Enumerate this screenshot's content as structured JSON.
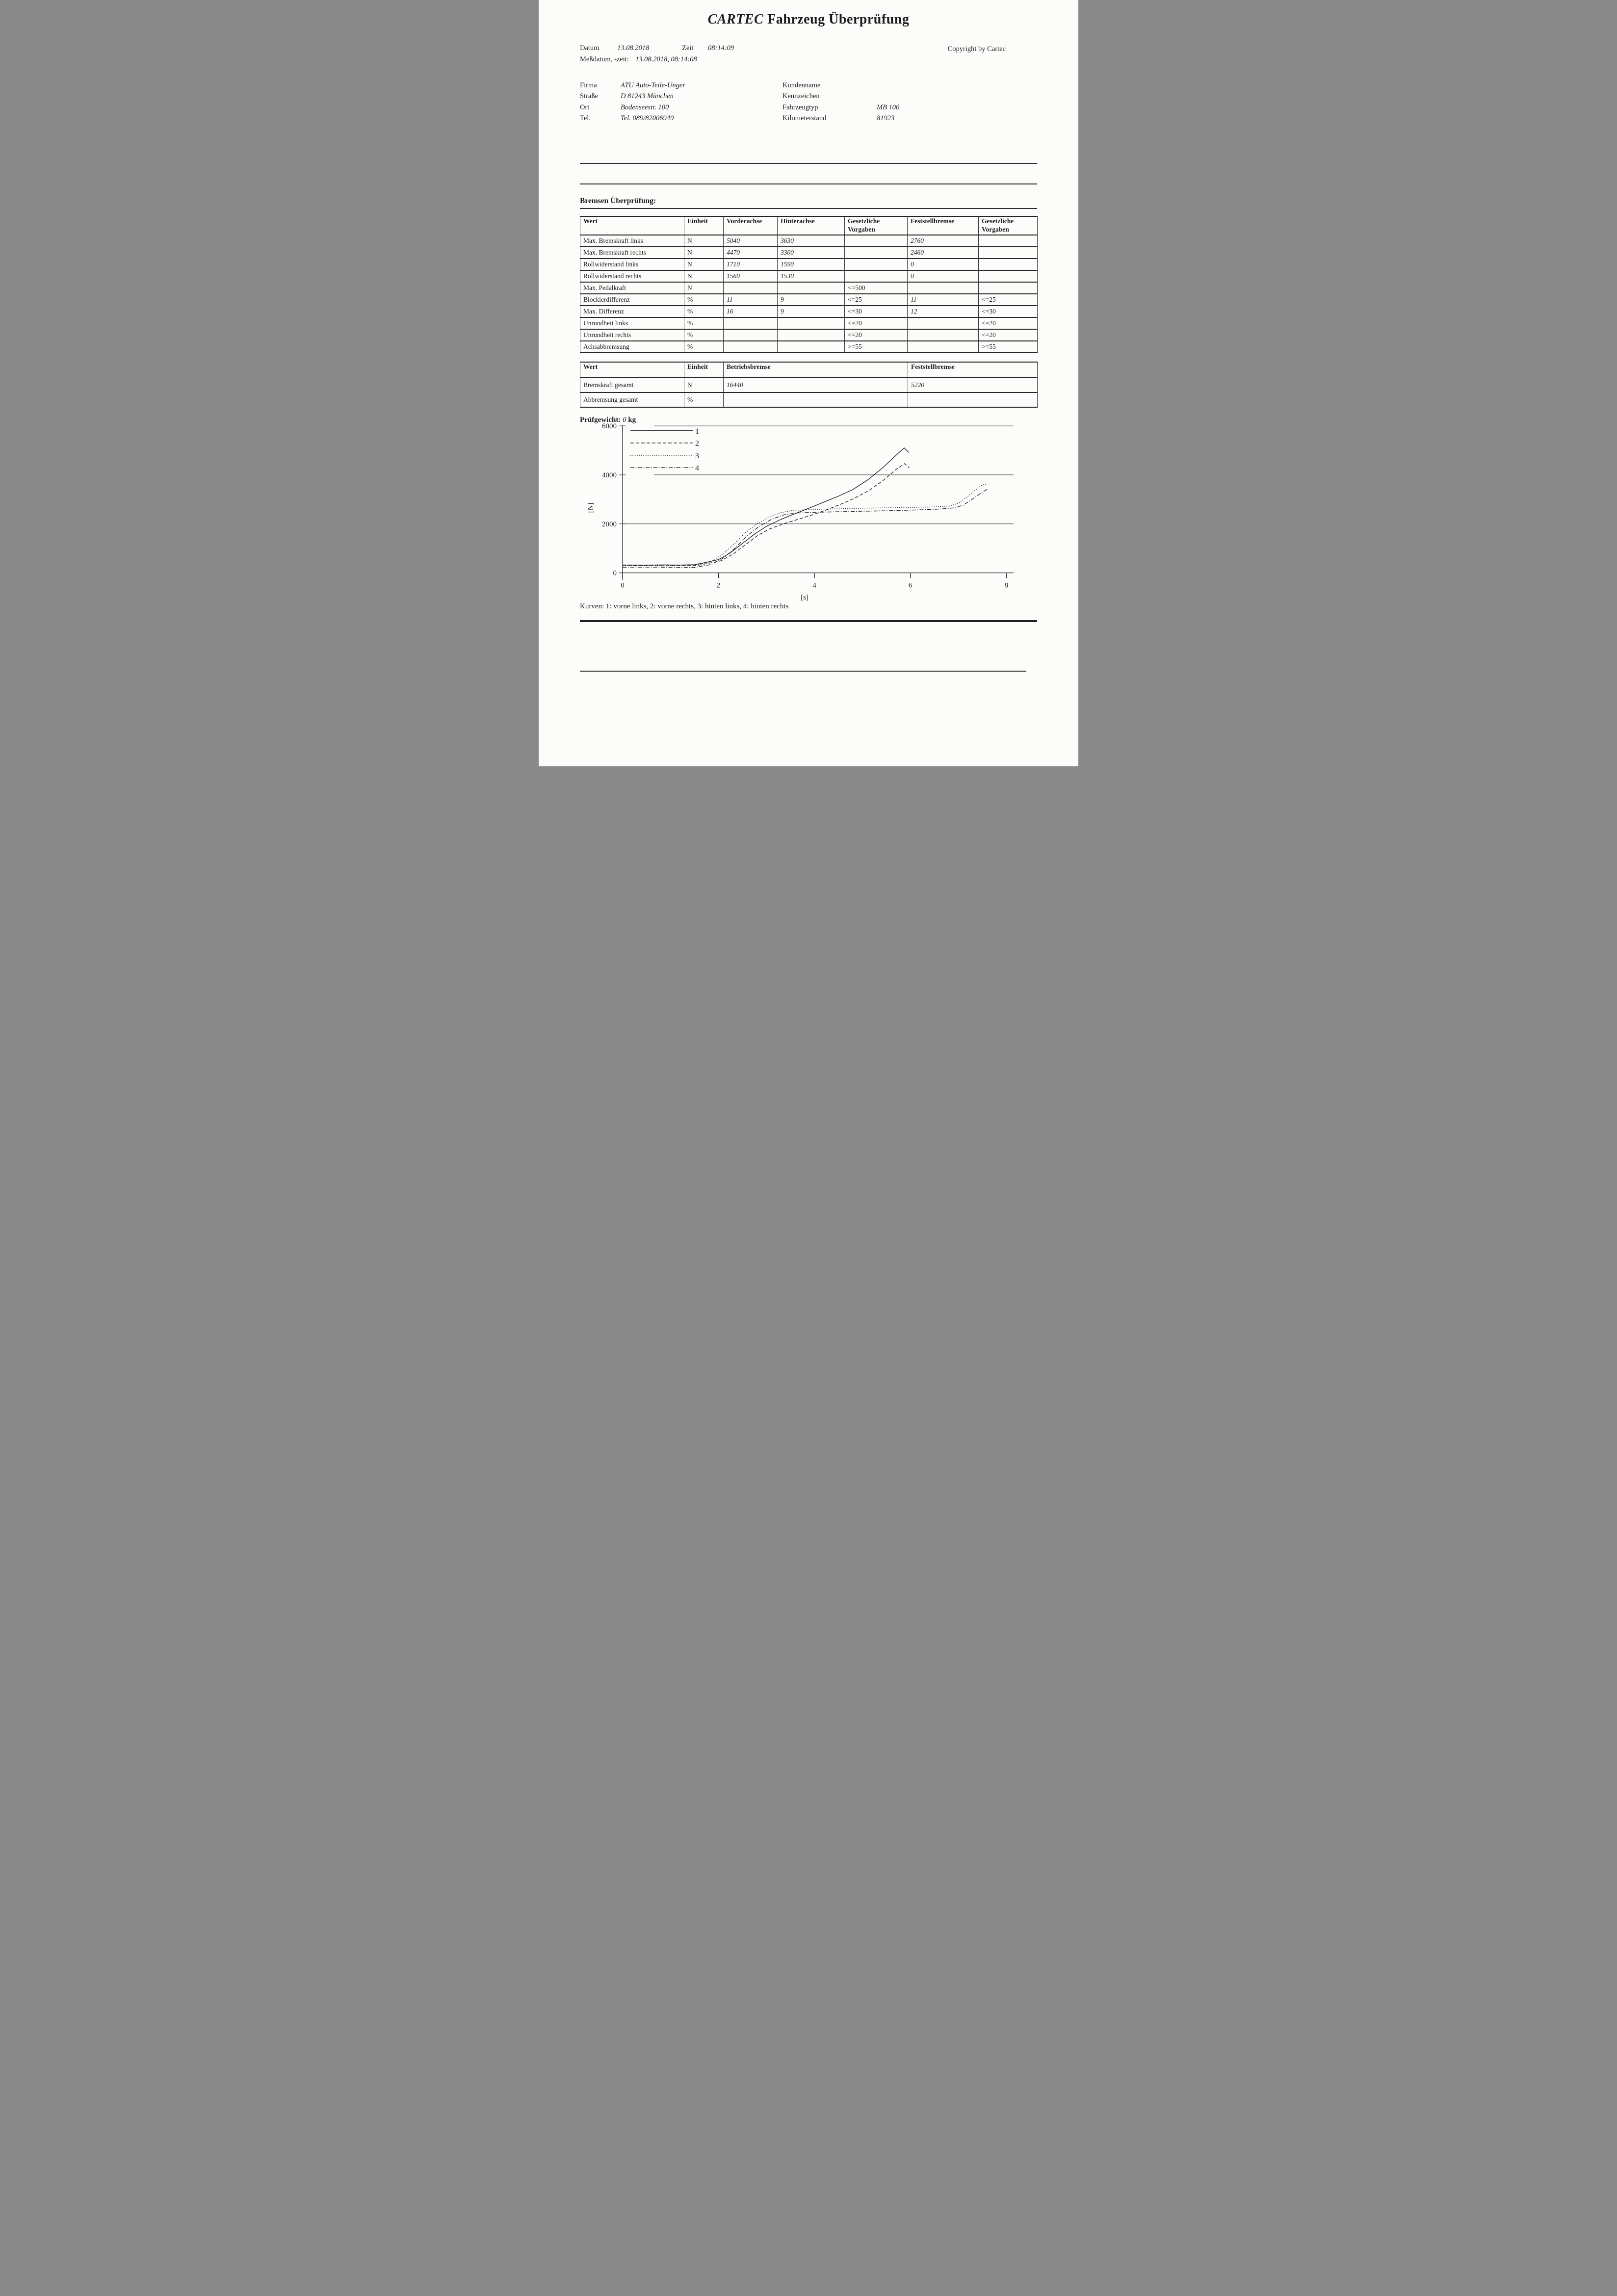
{
  "header": {
    "title_brand": "CARTEC",
    "title_rest": "Fahrzeug Überprüfung",
    "copyright": "Copyright by Cartec",
    "datum_label": "Datum",
    "datum_value": "13.08.2018",
    "zeit_label": "Zeit",
    "zeit_value": "08:14:09",
    "messdatum_label": "Meßdatum, -zeit:",
    "messdatum_value": "13.08.2018, 08:14:08"
  },
  "firma": {
    "rows": [
      {
        "label": "Firma",
        "value": "ATU Auto-Teile-Unger"
      },
      {
        "label": "Straße",
        "value": "D 81243  München"
      },
      {
        "label": "Ort",
        "value": "Bodenseestr. 100"
      },
      {
        "label": "Tel.",
        "value": "Tel. 089/82006949"
      }
    ]
  },
  "kunde": {
    "rows": [
      {
        "label": "Kundenname",
        "value": ""
      },
      {
        "label": "Kennzeichen",
        "value": ""
      },
      {
        "label": "Fahrzeugtyp",
        "value": "MB 100"
      },
      {
        "label": "Kilometerstand",
        "value": "81923"
      }
    ]
  },
  "section": {
    "heading": "Bremsen Überprüfung:"
  },
  "table1": {
    "headers": [
      "Wert",
      "Einheit",
      "Vorderachse",
      "Hinterachse",
      "Gesetzliche Vorgaben",
      "Feststellbremse",
      "Gesetzliche Vorgaben"
    ],
    "rows": [
      [
        "Max. Bremskraft links",
        "N",
        "5040",
        "3630",
        "",
        "2760",
        ""
      ],
      [
        "Max. Bremskraft rechts",
        "N",
        "4470",
        "3300",
        "",
        "2460",
        ""
      ],
      [
        "Rollwiderstand links",
        "N",
        "1710",
        "1590",
        "",
        "0",
        ""
      ],
      [
        "Rollwiderstand rechts",
        "N",
        "1560",
        "1530",
        "",
        "0",
        ""
      ],
      [
        "Max. Pedalkraft",
        "N",
        "",
        "",
        "<=500",
        "",
        ""
      ],
      [
        "Blockierdifferenz",
        "%",
        "11",
        "9",
        "<=25",
        "11",
        "<=25"
      ],
      [
        "Max. Differenz",
        "%",
        "16",
        "9",
        "<=30",
        "12",
        "<=30"
      ],
      [
        "Unrundheit links",
        "%",
        "",
        "",
        "<=20",
        "",
        "<=20"
      ],
      [
        "Unrundheit rechts",
        "%",
        "",
        "",
        "<=20",
        "",
        "<=20"
      ],
      [
        "Achsabbremsung",
        "%",
        "",
        "",
        ">=55",
        "",
        ">=55"
      ]
    ]
  },
  "table2": {
    "headers": [
      "Wert",
      "Einheit",
      "Betriebsbremse",
      "Feststellbremse"
    ],
    "rows": [
      [
        "Bremskraft gesamt",
        "N",
        "16440",
        "5220"
      ],
      [
        "Abbremsung gesamt",
        "%",
        "",
        ""
      ]
    ]
  },
  "pruefgewicht": {
    "label": "Prüfgewicht:",
    "value": "0",
    "unit": "kg"
  },
  "chart_data": {
    "type": "line",
    "title": "",
    "xlabel": "[s]",
    "ylabel": "[N]",
    "xlim": [
      0,
      8
    ],
    "ylim": [
      0,
      6000
    ],
    "x_ticks": [
      0,
      2,
      4,
      6,
      8
    ],
    "y_ticks": [
      0,
      2000,
      4000,
      6000
    ],
    "grid": "horizontal",
    "legend_position": "top-left",
    "series": [
      {
        "name": "1",
        "label": "vorne links",
        "style": "solid",
        "points": [
          [
            0,
            320
          ],
          [
            0.4,
            315
          ],
          [
            0.8,
            322
          ],
          [
            1.2,
            318
          ],
          [
            1.5,
            330
          ],
          [
            1.75,
            430
          ],
          [
            2.0,
            540
          ],
          [
            2.25,
            820
          ],
          [
            2.5,
            1200
          ],
          [
            2.75,
            1580
          ],
          [
            3.0,
            1900
          ],
          [
            3.3,
            2180
          ],
          [
            3.6,
            2420
          ],
          [
            3.9,
            2650
          ],
          [
            4.2,
            2890
          ],
          [
            4.5,
            3130
          ],
          [
            4.8,
            3400
          ],
          [
            5.1,
            3780
          ],
          [
            5.4,
            4250
          ],
          [
            5.7,
            4800
          ],
          [
            5.87,
            5100
          ],
          [
            5.97,
            4910
          ]
        ]
      },
      {
        "name": "2",
        "label": "vorne rechts",
        "style": "dashed",
        "points": [
          [
            0,
            285
          ],
          [
            0.4,
            290
          ],
          [
            0.8,
            283
          ],
          [
            1.2,
            290
          ],
          [
            1.55,
            300
          ],
          [
            1.8,
            390
          ],
          [
            2.05,
            490
          ],
          [
            2.3,
            760
          ],
          [
            2.55,
            1130
          ],
          [
            2.8,
            1500
          ],
          [
            3.05,
            1780
          ],
          [
            3.35,
            2000
          ],
          [
            3.65,
            2180
          ],
          [
            3.95,
            2360
          ],
          [
            4.25,
            2570
          ],
          [
            4.55,
            2800
          ],
          [
            4.85,
            3060
          ],
          [
            5.15,
            3380
          ],
          [
            5.45,
            3800
          ],
          [
            5.7,
            4220
          ],
          [
            5.88,
            4460
          ],
          [
            5.98,
            4280
          ]
        ]
      },
      {
        "name": "3",
        "label": "hinten links",
        "style": "dotted",
        "points": [
          [
            0,
            300
          ],
          [
            0.5,
            296
          ],
          [
            1.0,
            302
          ],
          [
            1.5,
            312
          ],
          [
            1.8,
            430
          ],
          [
            2.05,
            700
          ],
          [
            2.3,
            1120
          ],
          [
            2.55,
            1620
          ],
          [
            2.8,
            2000
          ],
          [
            3.05,
            2280
          ],
          [
            3.3,
            2460
          ],
          [
            3.55,
            2550
          ],
          [
            4.0,
            2590
          ],
          [
            4.5,
            2615
          ],
          [
            5.0,
            2640
          ],
          [
            5.5,
            2655
          ],
          [
            6.0,
            2670
          ],
          [
            6.45,
            2690
          ],
          [
            6.8,
            2720
          ],
          [
            7.0,
            2840
          ],
          [
            7.2,
            3130
          ],
          [
            7.38,
            3420
          ],
          [
            7.5,
            3590
          ],
          [
            7.58,
            3620
          ]
        ]
      },
      {
        "name": "4",
        "label": "hinten rechts",
        "style": "dashdot",
        "points": [
          [
            0,
            210
          ],
          [
            0.5,
            206
          ],
          [
            1.0,
            212
          ],
          [
            1.5,
            218
          ],
          [
            1.85,
            340
          ],
          [
            2.1,
            600
          ],
          [
            2.35,
            1020
          ],
          [
            2.6,
            1520
          ],
          [
            2.85,
            1900
          ],
          [
            3.1,
            2180
          ],
          [
            3.35,
            2360
          ],
          [
            3.6,
            2440
          ],
          [
            4.0,
            2470
          ],
          [
            4.5,
            2495
          ],
          [
            5.0,
            2515
          ],
          [
            5.5,
            2535
          ],
          [
            6.0,
            2560
          ],
          [
            6.5,
            2590
          ],
          [
            6.9,
            2650
          ],
          [
            7.1,
            2760
          ],
          [
            7.3,
            3020
          ],
          [
            7.5,
            3300
          ],
          [
            7.62,
            3430
          ]
        ]
      }
    ]
  },
  "caption": "Kurven: 1: vorne links, 2: vorne rechts, 3: hinten links, 4: hinten rechts"
}
